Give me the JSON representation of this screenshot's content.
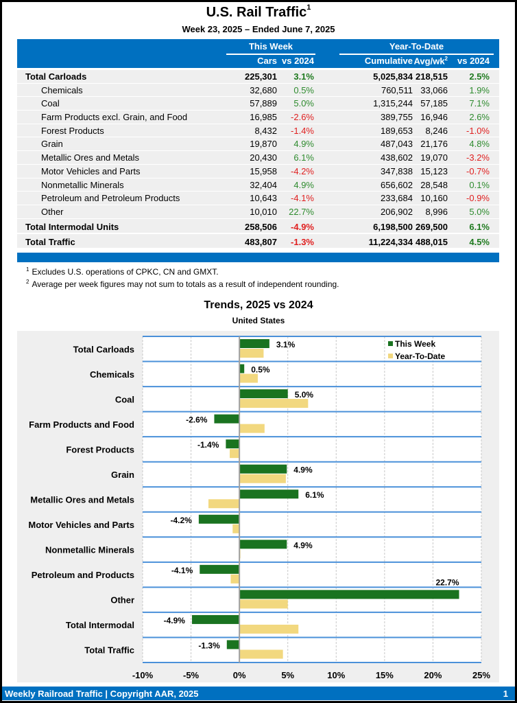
{
  "header": {
    "title": "U.S. Rail Traffic",
    "title_footnote": "1",
    "subtitle": "Week 23, 2025 – Ended June 7, 2025"
  },
  "table": {
    "groups": {
      "this_week": "This Week",
      "ytd": "Year-To-Date"
    },
    "columns": {
      "cars": "Cars",
      "vs2024": "vs 2024",
      "cumulative": "Cumulative",
      "avgwk": "Avg/wk",
      "avgwk_footnote": "2",
      "ytd_vs2024": "vs 2024"
    },
    "rows": [
      {
        "name": "Total Carloads",
        "type": "total",
        "cars": "225,301",
        "vs": "3.1%",
        "cum": "5,025,834",
        "avg": "218,515",
        "ytd": "2.5%"
      },
      {
        "name": "Chemicals",
        "type": "sub",
        "cars": "32,680",
        "vs": "0.5%",
        "cum": "760,511",
        "avg": "33,066",
        "ytd": "1.9%"
      },
      {
        "name": "Coal",
        "type": "sub",
        "cars": "57,889",
        "vs": "5.0%",
        "cum": "1,315,244",
        "avg": "57,185",
        "ytd": "7.1%"
      },
      {
        "name": "Farm Products excl. Grain, and Food",
        "type": "sub",
        "cars": "16,985",
        "vs": "-2.6%",
        "cum": "389,755",
        "avg": "16,946",
        "ytd": "2.6%"
      },
      {
        "name": "Forest Products",
        "type": "sub",
        "cars": "8,432",
        "vs": "-1.4%",
        "cum": "189,653",
        "avg": "8,246",
        "ytd": "-1.0%"
      },
      {
        "name": "Grain",
        "type": "sub",
        "cars": "19,870",
        "vs": "4.9%",
        "cum": "487,043",
        "avg": "21,176",
        "ytd": "4.8%"
      },
      {
        "name": "Metallic Ores and Metals",
        "type": "sub",
        "cars": "20,430",
        "vs": "6.1%",
        "cum": "438,602",
        "avg": "19,070",
        "ytd": "-3.2%"
      },
      {
        "name": "Motor Vehicles and Parts",
        "type": "sub",
        "cars": "15,958",
        "vs": "-4.2%",
        "cum": "347,838",
        "avg": "15,123",
        "ytd": "-0.7%"
      },
      {
        "name": "Nonmetallic Minerals",
        "type": "sub",
        "cars": "32,404",
        "vs": "4.9%",
        "cum": "656,602",
        "avg": "28,548",
        "ytd": "0.1%"
      },
      {
        "name": "Petroleum and Petroleum Products",
        "type": "sub",
        "cars": "10,643",
        "vs": "-4.1%",
        "cum": "233,684",
        "avg": "10,160",
        "ytd": "-0.9%"
      },
      {
        "name": "Other",
        "type": "sub",
        "cars": "10,010",
        "vs": "22.7%",
        "cum": "206,902",
        "avg": "8,996",
        "ytd": "5.0%"
      },
      {
        "name": "Total Intermodal Units",
        "type": "big",
        "cars": "258,506",
        "vs": "-4.9%",
        "cum": "6,198,500",
        "avg": "269,500",
        "ytd": "6.1%"
      },
      {
        "name": "Total Traffic",
        "type": "big",
        "cars": "483,807",
        "vs": "-1.3%",
        "cum": "11,224,334",
        "avg": "488,015",
        "ytd": "4.5%"
      }
    ]
  },
  "footnotes": [
    {
      "mark": "1",
      "text": "Excludes U.S. operations of CPKC, CN and GMXT."
    },
    {
      "mark": "2",
      "text": "Average per week figures may not sum to totals as a result of independent rounding."
    }
  ],
  "colors": {
    "this_week": "#1a7320",
    "ytd": "#f2d87f",
    "brand_blue": "#0070c0",
    "positive": "#2e8b2e",
    "negative": "#e02020"
  },
  "chart_data": {
    "type": "bar",
    "orientation": "horizontal",
    "title": "Trends, 2025 vs 2024",
    "subtitle": "United States",
    "categories": [
      "Total Carloads",
      "Chemicals",
      "Coal",
      "Farm Products and Food",
      "Forest Products",
      "Grain",
      "Metallic Ores and Metals",
      "Motor Vehicles and Parts",
      "Nonmetallic Minerals",
      "Petroleum and Products",
      "Other",
      "Total Intermodal",
      "Total Traffic"
    ],
    "series": [
      {
        "name": "This Week",
        "values": [
          3.1,
          0.5,
          5.0,
          -2.6,
          -1.4,
          4.9,
          6.1,
          -4.2,
          4.9,
          -4.1,
          22.7,
          -4.9,
          -1.3
        ],
        "labels": [
          "3.1%",
          "0.5%",
          "5.0%",
          "-2.6%",
          "-1.4%",
          "4.9%",
          "6.1%",
          "-4.2%",
          "4.9%",
          "-4.1%",
          "22.7%",
          "-4.9%",
          "-1.3%"
        ]
      },
      {
        "name": "Year-To-Date",
        "values": [
          2.5,
          1.9,
          7.1,
          2.6,
          -1.0,
          4.8,
          -3.2,
          -0.7,
          0.1,
          -0.9,
          5.0,
          6.1,
          4.5
        ]
      }
    ],
    "xlim": [
      -10,
      25
    ],
    "xticks": [
      -10,
      -5,
      0,
      5,
      10,
      15,
      20,
      25
    ],
    "xtick_labels": [
      "-10%",
      "-5%",
      "0%",
      "5%",
      "10%",
      "15%",
      "20%",
      "25%"
    ],
    "grid": true,
    "legend": "top-right",
    "xlabel": "",
    "ylabel": ""
  },
  "footer": {
    "text": "Weekly Railroad Traffic | Copyright AAR, 2025",
    "page": "1"
  }
}
